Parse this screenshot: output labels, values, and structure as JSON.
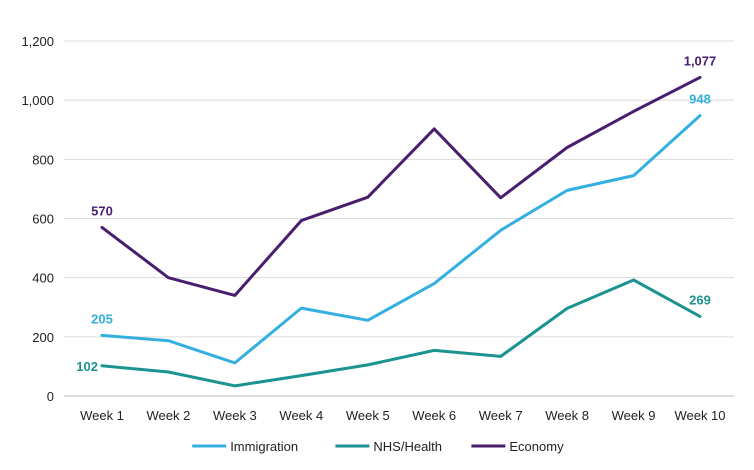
{
  "chart_data": {
    "type": "line",
    "categories": [
      "Week 1",
      "Week 2",
      "Week 3",
      "Week 4",
      "Week 5",
      "Week 6",
      "Week 7",
      "Week 8",
      "Week 9",
      "Week 10"
    ],
    "series": [
      {
        "name": "Immigration",
        "color": "#33b0e0",
        "values": [
          205,
          187,
          112,
          297,
          256,
          380,
          560,
          695,
          745,
          948
        ]
      },
      {
        "name": "NHS/Health",
        "color": "#1a9391",
        "values": [
          102,
          81,
          34,
          69,
          105,
          154,
          134,
          296,
          392,
          269
        ]
      },
      {
        "name": "Economy",
        "color": "#4a1e6e",
        "values": [
          570,
          400,
          340,
          593,
          672,
          903,
          670,
          840,
          962,
          1077
        ]
      }
    ],
    "data_labels": [
      {
        "series": 2,
        "index": 0,
        "text": "570"
      },
      {
        "series": 0,
        "index": 0,
        "text": "205"
      },
      {
        "series": 1,
        "index": 0,
        "text": "102"
      },
      {
        "series": 2,
        "index": 9,
        "text": "1,077"
      },
      {
        "series": 0,
        "index": 9,
        "text": "948"
      },
      {
        "series": 1,
        "index": 9,
        "text": "269"
      }
    ],
    "y_ticks": [
      0,
      200,
      400,
      600,
      800,
      1000,
      1200
    ],
    "y_tick_labels": [
      "0",
      "200",
      "400",
      "600",
      "800",
      "1,000",
      "1,200"
    ],
    "ylim": [
      0,
      1200
    ],
    "grid": true,
    "legend_position": "bottom-center",
    "title": "",
    "xlabel": "",
    "ylabel": ""
  }
}
